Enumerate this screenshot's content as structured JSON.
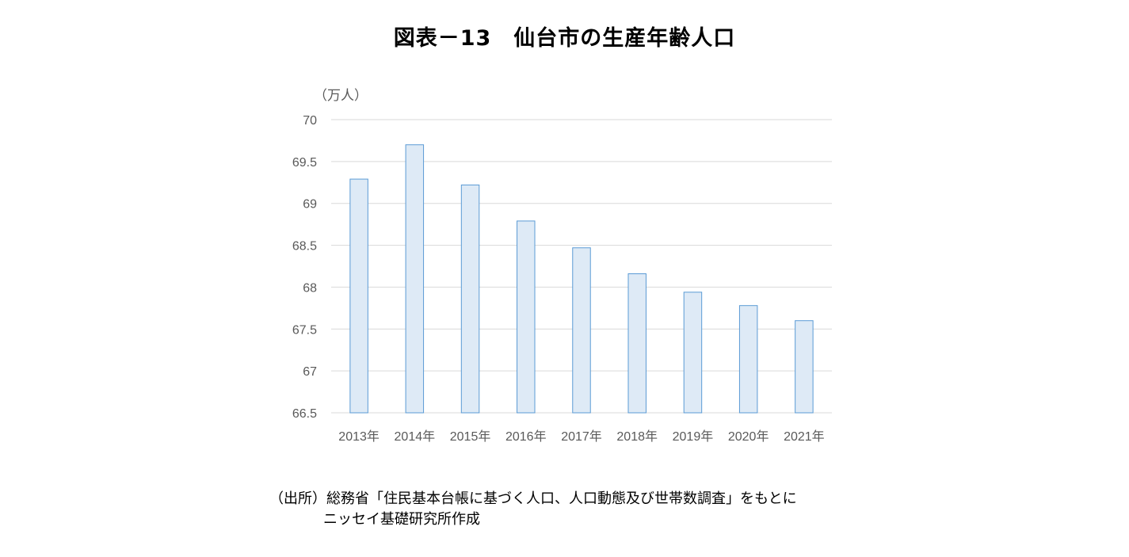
{
  "page": {
    "title": "図表－13　仙台市の生産年齢人口",
    "unit_label": "（万人）",
    "source_line1": "（出所）総務省「住民基本台帳に基づく人口、人口動態及び世帯数調査」をもとに",
    "source_line2": "ニッセイ基礎研究所作成"
  },
  "colors": {
    "bar_fill": "#DEEAF6",
    "bar_stroke": "#5B9BD5",
    "grid": "#D9D9D9",
    "tick_text": "#595959"
  },
  "chart_data": {
    "type": "bar",
    "title": "図表－13　仙台市の生産年齢人口",
    "ylabel": "（万人）",
    "xlabel": "",
    "categories": [
      "2013年",
      "2014年",
      "2015年",
      "2016年",
      "2017年",
      "2018年",
      "2019年",
      "2020年",
      "2021年"
    ],
    "values": [
      69.29,
      69.7,
      69.22,
      68.79,
      68.47,
      68.16,
      67.94,
      67.78,
      67.6
    ],
    "ylim": [
      66.5,
      70
    ],
    "yticks": [
      66.5,
      67,
      67.5,
      68,
      68.5,
      69,
      69.5,
      70
    ],
    "ytick_labels": [
      "66.5",
      "67",
      "67.5",
      "68",
      "68.5",
      "69",
      "69.5",
      "70"
    ],
    "grid": true,
    "legend": "none"
  }
}
